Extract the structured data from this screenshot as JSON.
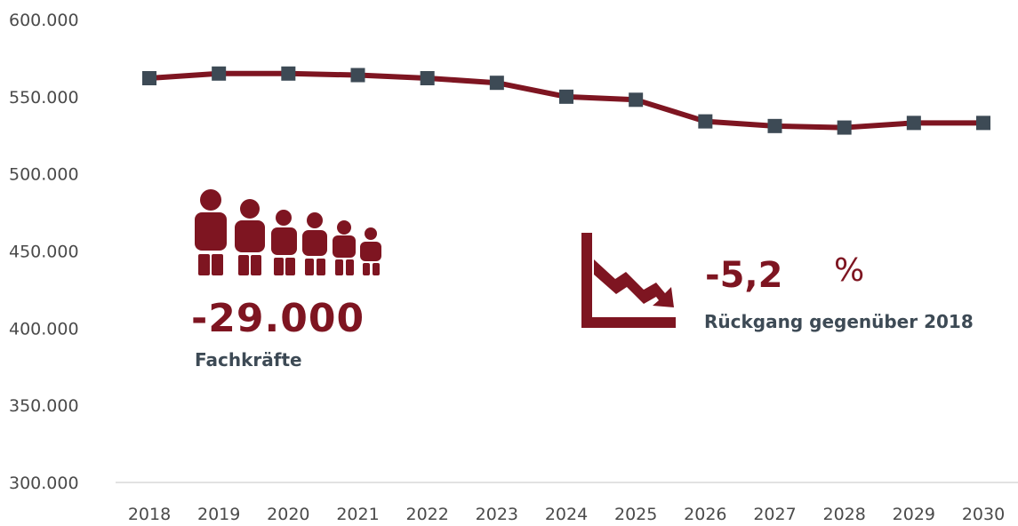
{
  "chart_data": {
    "type": "line",
    "x": [
      "2018",
      "2019",
      "2020",
      "2021",
      "2022",
      "2023",
      "2024",
      "2025",
      "2026",
      "2027",
      "2028",
      "2029",
      "2030"
    ],
    "y": [
      562000,
      565000,
      565000,
      564000,
      562000,
      559000,
      550000,
      548000,
      534000,
      531000,
      530000,
      533000,
      533000
    ],
    "ylim": [
      300000,
      600000
    ],
    "yticks": [
      "300.000",
      "350.000",
      "400.000",
      "450.000",
      "500.000",
      "550.000",
      "600.000"
    ],
    "grid": false,
    "colors": {
      "line": "#7e1521",
      "marker": "#3d4a55"
    }
  },
  "callouts": {
    "workers": {
      "value": "-29.000",
      "label": "Fachkräfte",
      "icon": "people-group-icon"
    },
    "decline": {
      "value": "-5,2",
      "unit": "%",
      "label": "Rückgang gegenüber 2018",
      "icon": "declining-chart-icon"
    }
  },
  "colors": {
    "accent": "#7e1521",
    "text": "#3d4a55"
  }
}
